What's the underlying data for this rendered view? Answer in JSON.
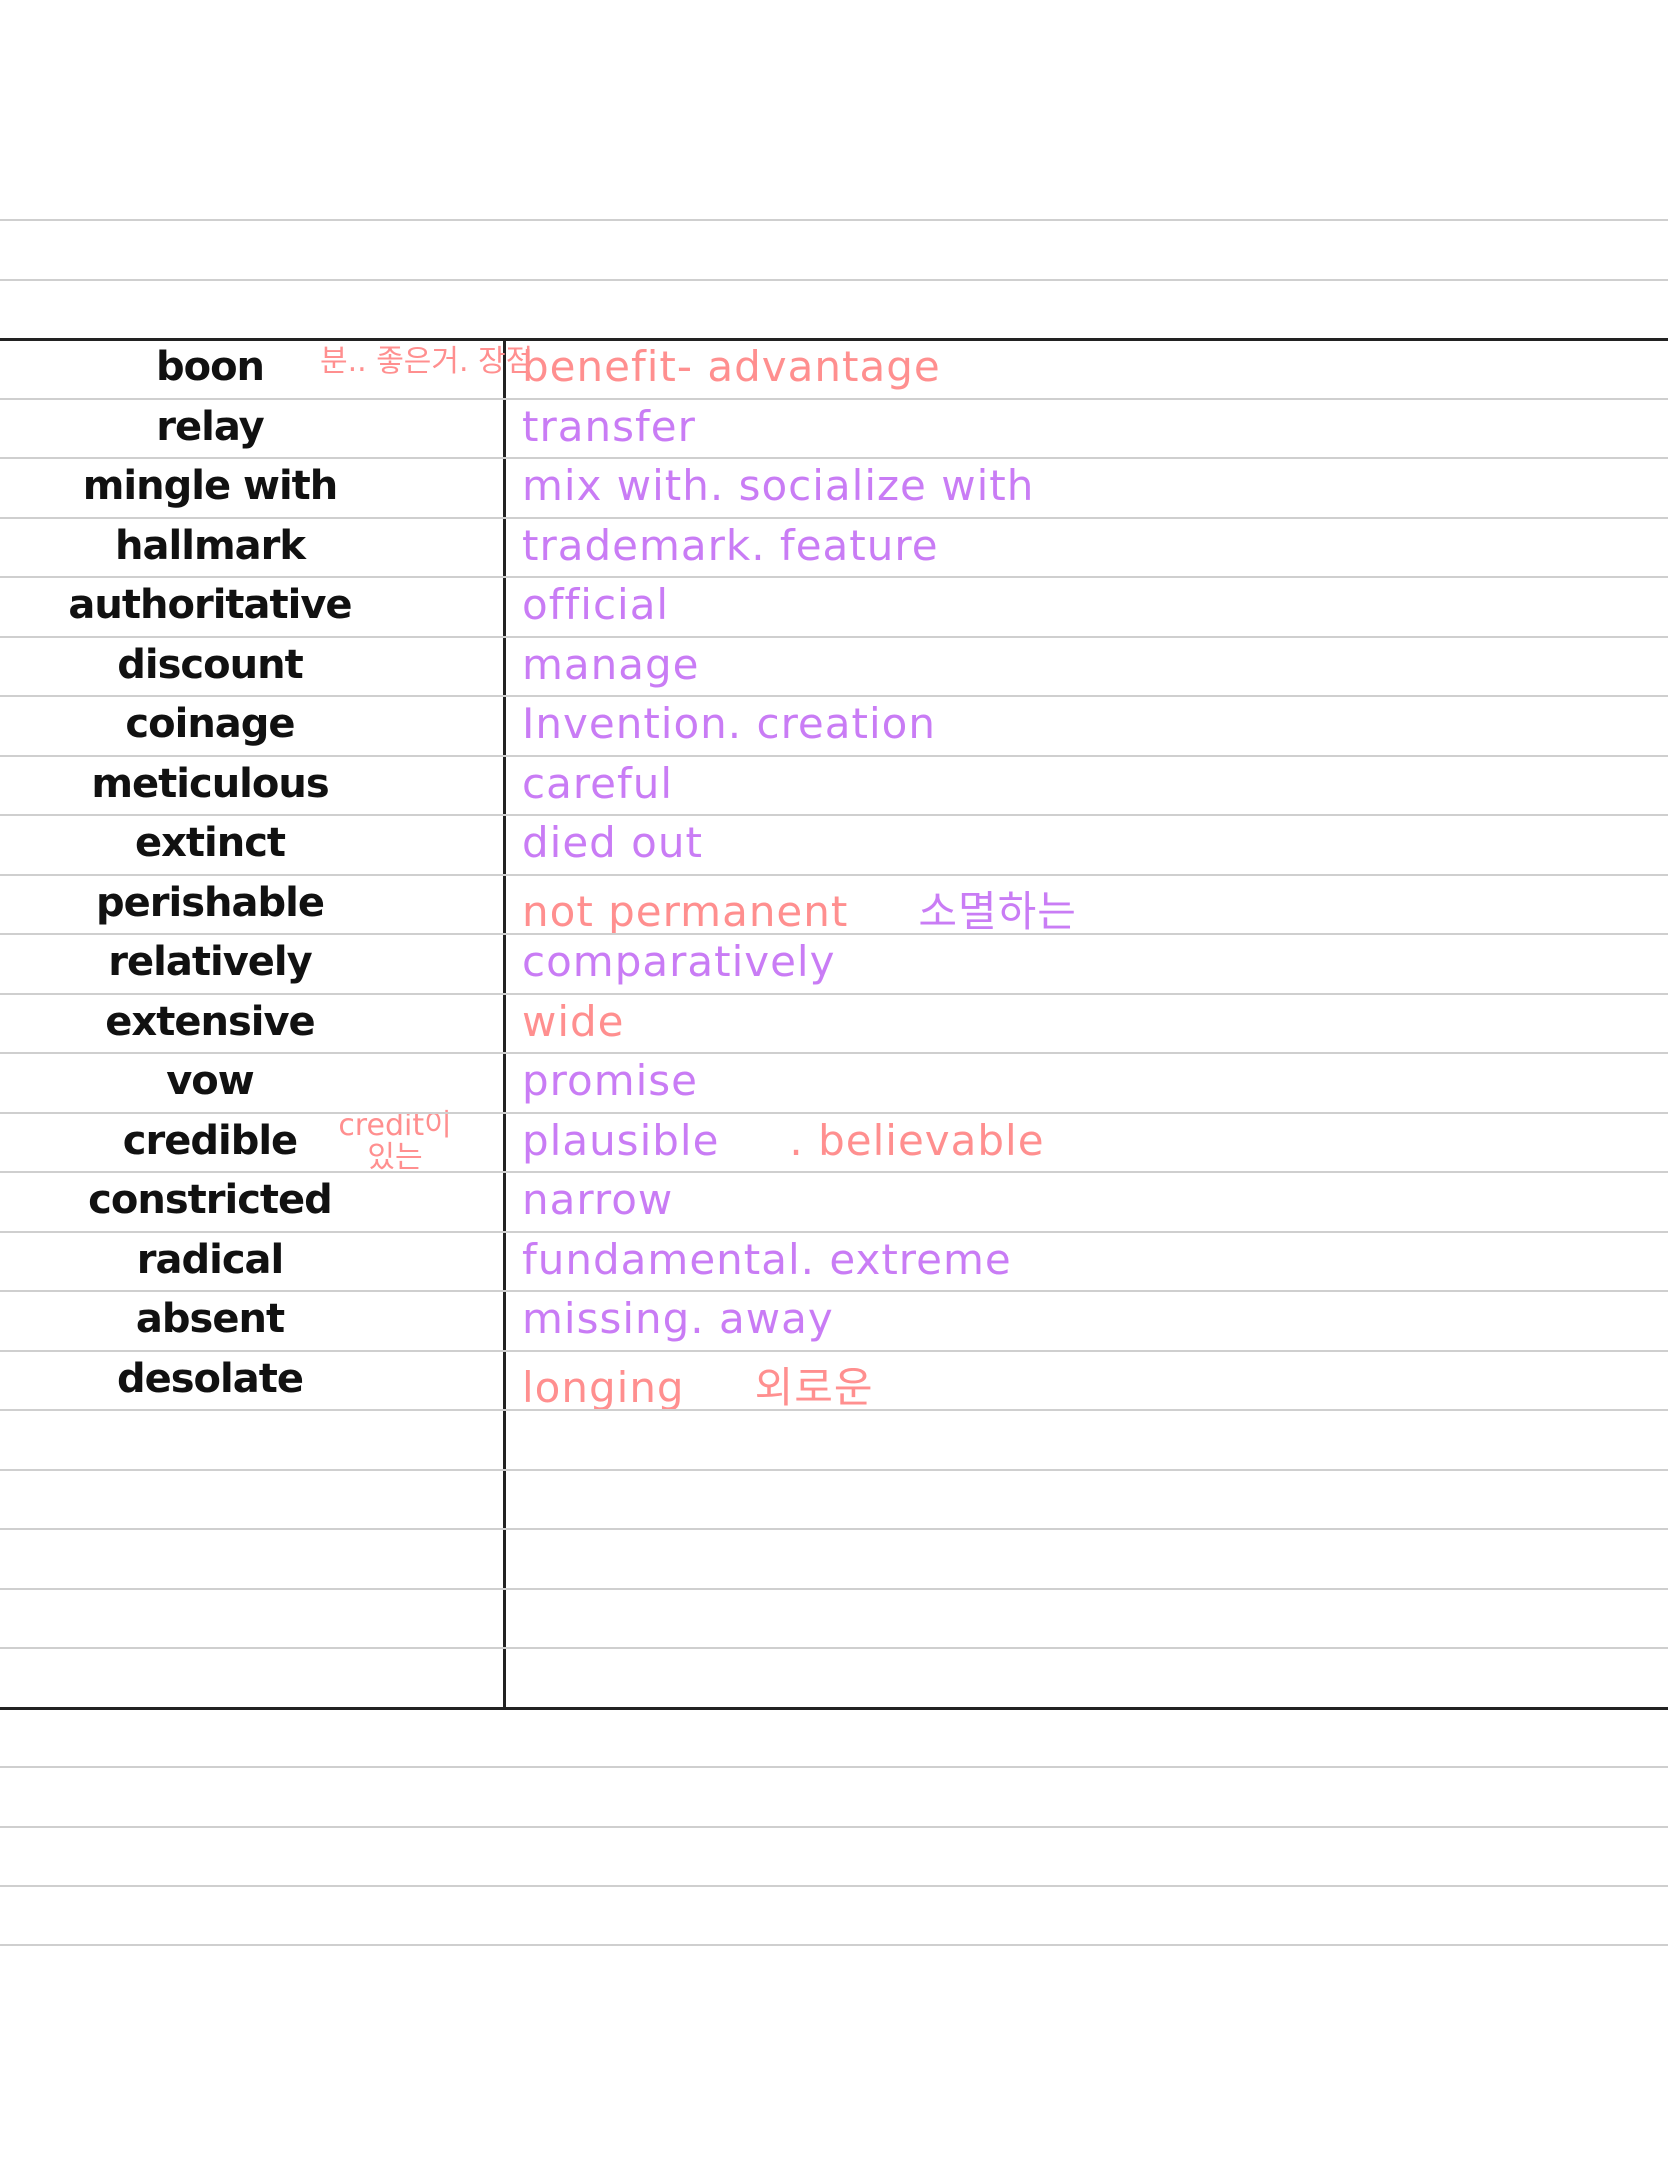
{
  "colors": {
    "word": "#111111",
    "definition_purple": "#c97cf5",
    "definition_pink": "#ff8f8f",
    "rule": "#cfcfcf",
    "table_border": "#222222"
  },
  "entries": [
    {
      "word": "boon",
      "note": "분.. 좋은거. 장점",
      "definition": "benefit- advantage",
      "def_color": "pink",
      "extra": ""
    },
    {
      "word": "relay",
      "note": "",
      "definition": "transfer",
      "def_color": "purple",
      "extra": ""
    },
    {
      "word": "mingle with",
      "note": "",
      "definition": "mix with. socialize with",
      "def_color": "purple",
      "extra": ""
    },
    {
      "word": "hallmark",
      "note": "",
      "definition": "trademark. feature",
      "def_color": "purple",
      "extra": ""
    },
    {
      "word": "authoritative",
      "note": "",
      "definition": "official",
      "def_color": "purple",
      "extra": ""
    },
    {
      "word": "discount",
      "note": "",
      "definition": "manage",
      "def_color": "purple",
      "extra": ""
    },
    {
      "word": "coinage",
      "note": "",
      "definition": "Invention. creation",
      "def_color": "purple",
      "extra": ""
    },
    {
      "word": "meticulous",
      "note": "",
      "definition": "careful",
      "def_color": "purple",
      "extra": ""
    },
    {
      "word": "extinct",
      "note": "",
      "definition": "died out",
      "def_color": "purple",
      "extra": ""
    },
    {
      "word": "perishable",
      "note": "",
      "definition": "not permanent",
      "def_color": "pink",
      "extra": "소멸하는",
      "extra_color": "purple"
    },
    {
      "word": "relatively",
      "note": "",
      "definition": "comparatively",
      "def_color": "purple",
      "extra": ""
    },
    {
      "word": "extensive",
      "note": "",
      "definition": "wide",
      "def_color": "pink",
      "extra": ""
    },
    {
      "word": "vow",
      "note": "",
      "definition": "promise",
      "def_color": "purple",
      "extra": ""
    },
    {
      "word": "credible",
      "note": "credit이 있는",
      "definition": "plausible",
      "def_color": "purple",
      "extra": ". believable",
      "extra_color": "pink"
    },
    {
      "word": "constricted",
      "note": "",
      "definition": "narrow",
      "def_color": "purple",
      "extra": ""
    },
    {
      "word": "radical",
      "note": "",
      "definition": "fundamental. extreme",
      "def_color": "purple",
      "extra": ""
    },
    {
      "word": "absent",
      "note": "",
      "definition": "missing. away",
      "def_color": "purple",
      "extra": ""
    },
    {
      "word": "desolate",
      "note": "",
      "definition": "longing",
      "def_color": "pink",
      "extra": "외로운",
      "extra_color": "pink"
    }
  ]
}
